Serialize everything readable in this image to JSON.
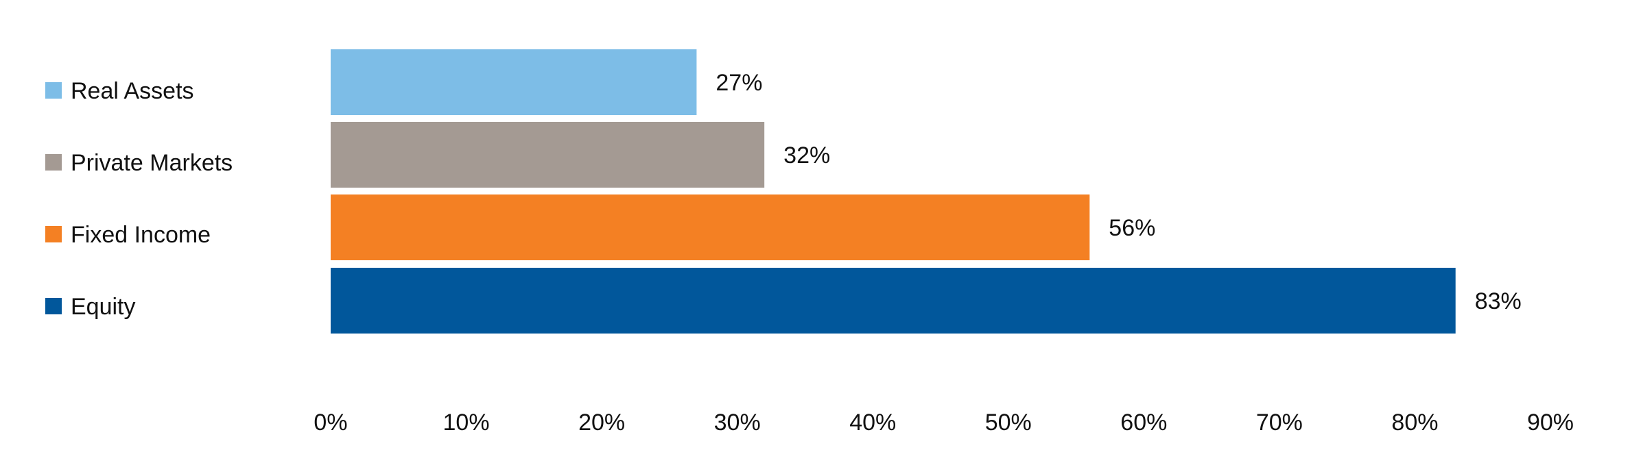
{
  "chart_data": {
    "type": "bar",
    "orientation": "horizontal",
    "categories": [
      "Real Assets",
      "Private Markets",
      "Fixed Income",
      "Equity"
    ],
    "values": [
      27,
      32,
      56,
      83
    ],
    "data_labels": [
      "27%",
      "32%",
      "56%",
      "83%"
    ],
    "colors": [
      "#7dbde7",
      "#a49a93",
      "#f48023",
      "#01579b"
    ],
    "xlim": [
      0,
      90
    ],
    "xticks": [
      0,
      10,
      20,
      30,
      40,
      50,
      60,
      70,
      80,
      90
    ],
    "xtick_labels": [
      "0%",
      "10%",
      "20%",
      "30%",
      "40%",
      "50%",
      "60%",
      "70%",
      "80%",
      "90%"
    ],
    "legend": {
      "position": "left",
      "entries": [
        "Real Assets",
        "Private Markets",
        "Fixed Income",
        "Equity"
      ]
    },
    "grid": false
  }
}
